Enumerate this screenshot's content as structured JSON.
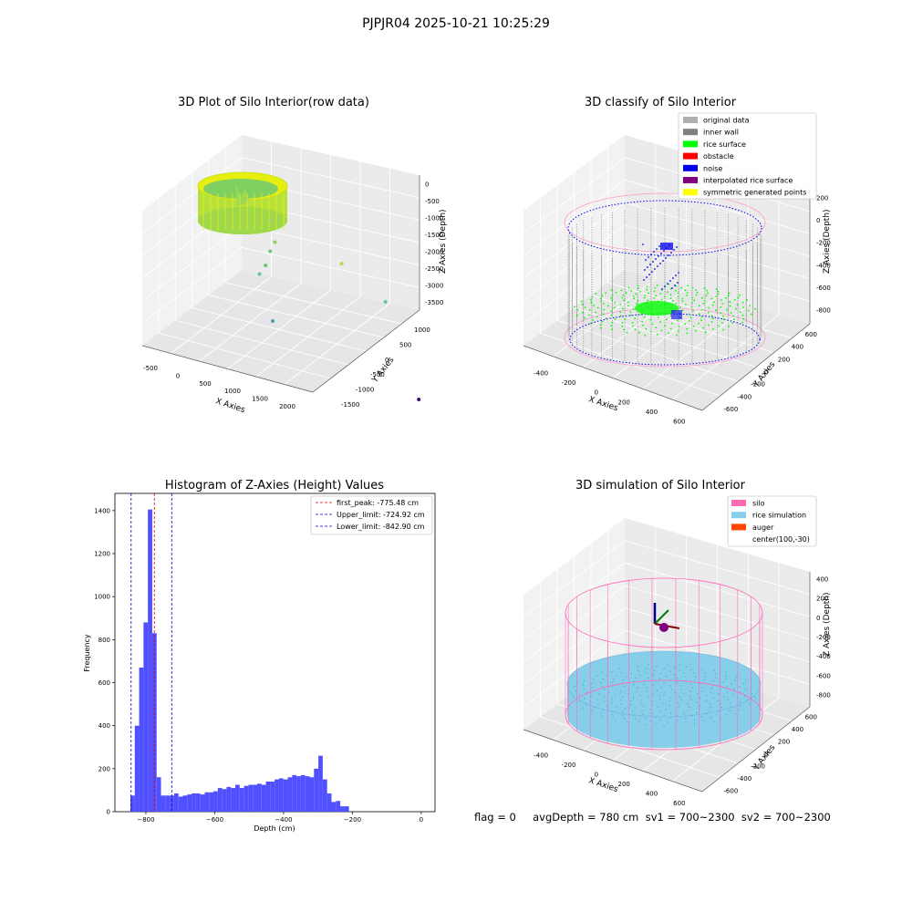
{
  "figure": {
    "suptitle": "PJPJR04 2025-10-21 10:25:29",
    "status_line": "flag = 0     avgDepth = 780 cm  sv1 = 700~2300  sv2 = 700~2300"
  },
  "colors": {
    "original": "#b0b0b0",
    "inner_wall": "#808080",
    "rice_surface": "#00ff00",
    "obstacle": "#ff0000",
    "noise": "#0000ee",
    "interpolated": "#800080",
    "symmetric": "#ffff00",
    "silo": "#ff69b4",
    "rice_sim": "#87ceeb",
    "auger": "#ff4500",
    "hist_bar": "#5050ff",
    "first_peak_line": "#e00000",
    "limit_line": "#0000cc"
  },
  "chart_data": [
    {
      "type": "scatter3d",
      "title": "3D Plot of Silo Interior(row data)",
      "xlabel": "X Axies",
      "ylabel": "Y Axies",
      "zlabel": "Z Axies (Depth)",
      "x_ticks": [
        "-500",
        "0",
        "500",
        "1000",
        "1500",
        "2000"
      ],
      "y_ticks": [
        "1000",
        "500",
        "0",
        "-500",
        "-1000",
        "-1500"
      ],
      "z_ticks": [
        "0",
        "-500",
        "-1000",
        "-1500",
        "-2000",
        "-2500",
        "-3000",
        "-3500"
      ],
      "outliers": [
        {
          "x": 500,
          "y": 200,
          "z": -600
        },
        {
          "x": 450,
          "y": -100,
          "z": -1000
        },
        {
          "x": 400,
          "y": -50,
          "z": -1200
        },
        {
          "x": 350,
          "y": 0,
          "z": -1500
        },
        {
          "x": 300,
          "y": 100,
          "z": -1700
        },
        {
          "x": 1300,
          "y": -500,
          "z": -1200
        },
        {
          "x": 1800,
          "y": -900,
          "z": -1800
        },
        {
          "x": 500,
          "y": 100,
          "z": -2600
        },
        {
          "x": 2100,
          "y": -1400,
          "z": -3600
        }
      ]
    },
    {
      "type": "scatter3d",
      "title": "3D classify of Silo Interior",
      "xlabel": "X Axies",
      "ylabel": "Y Axies",
      "zlabel": "Z Axies (Depth)",
      "x_ticks": [
        "-400",
        "-200",
        "0",
        "200",
        "400",
        "600"
      ],
      "y_ticks": [
        "600",
        "400",
        "200",
        "0",
        "-200",
        "-400",
        "-600"
      ],
      "z_ticks": [
        "200",
        "0",
        "-200",
        "-400",
        "-600",
        "-800"
      ],
      "legend": [
        "original data",
        "inner wall",
        "rice surface",
        "obstacle",
        "noise",
        "interpolated rice surface",
        "symmetric generated points"
      ]
    },
    {
      "type": "bar",
      "title": "Histogram of Z-Axies (Height) Values",
      "xlabel": "Depth (cm)",
      "ylabel": "Frequency",
      "xlim": [
        -890,
        40
      ],
      "ylim": [
        0,
        1480
      ],
      "x_ticks": [
        -800,
        -600,
        -400,
        -200,
        0
      ],
      "y_ticks": [
        0,
        200,
        400,
        600,
        800,
        1000,
        1200,
        1400
      ],
      "bin_start": -845,
      "bin_width": 12.7,
      "values": [
        75,
        400,
        670,
        880,
        1405,
        830,
        160,
        75,
        75,
        75,
        85,
        70,
        75,
        80,
        85,
        85,
        80,
        90,
        90,
        95,
        110,
        105,
        115,
        110,
        125,
        110,
        120,
        125,
        125,
        130,
        125,
        140,
        140,
        150,
        155,
        150,
        160,
        170,
        165,
        170,
        165,
        160,
        200,
        260,
        150,
        85,
        45,
        50,
        25,
        25
      ],
      "vlines": [
        {
          "name": "first_peak",
          "value": -775.48,
          "label": "first_peak: -775.48 cm"
        },
        {
          "name": "upper_limit",
          "value": -724.92,
          "label": "Upper_limit: -724.92 cm"
        },
        {
          "name": "lower_limit",
          "value": -842.9,
          "label": "Lower_limit: -842.90 cm"
        }
      ],
      "legend_position": "top-right"
    },
    {
      "type": "scatter3d",
      "title": "3D simulation of Silo Interior",
      "xlabel": "X Axies",
      "ylabel": "Y Axies",
      "zlabel": "Z Axies (Depth)",
      "x_ticks": [
        "-400",
        "-200",
        "0",
        "200",
        "400",
        "600"
      ],
      "y_ticks": [
        "600",
        "400",
        "200",
        "0",
        "-200",
        "-400",
        "-600"
      ],
      "z_ticks": [
        "400",
        "200",
        "0",
        "-200",
        "-400",
        "-600",
        "-800"
      ],
      "legend": [
        "silo",
        "rice simulation",
        "auger",
        "center(100,-30)"
      ]
    }
  ]
}
